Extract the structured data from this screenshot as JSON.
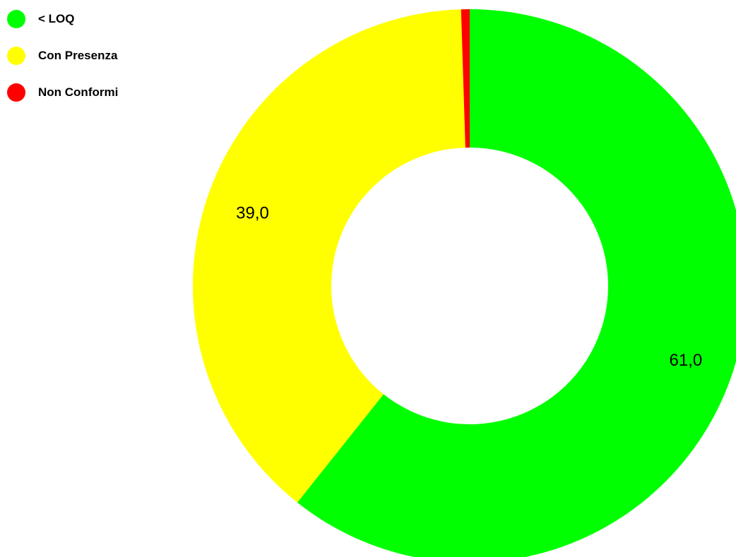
{
  "chart_data": {
    "type": "pie",
    "variant": "donut",
    "legend_position": "top-left",
    "series": [
      {
        "name": "< LOQ",
        "value": 61.0,
        "label": "61,0",
        "color": "#00ff00"
      },
      {
        "name": "Con Presenza",
        "value": 39.0,
        "label": "39,0",
        "color": "#ffff00"
      },
      {
        "name": "Non Conformi",
        "value": 0.5,
        "color": "#ff0000"
      }
    ]
  }
}
